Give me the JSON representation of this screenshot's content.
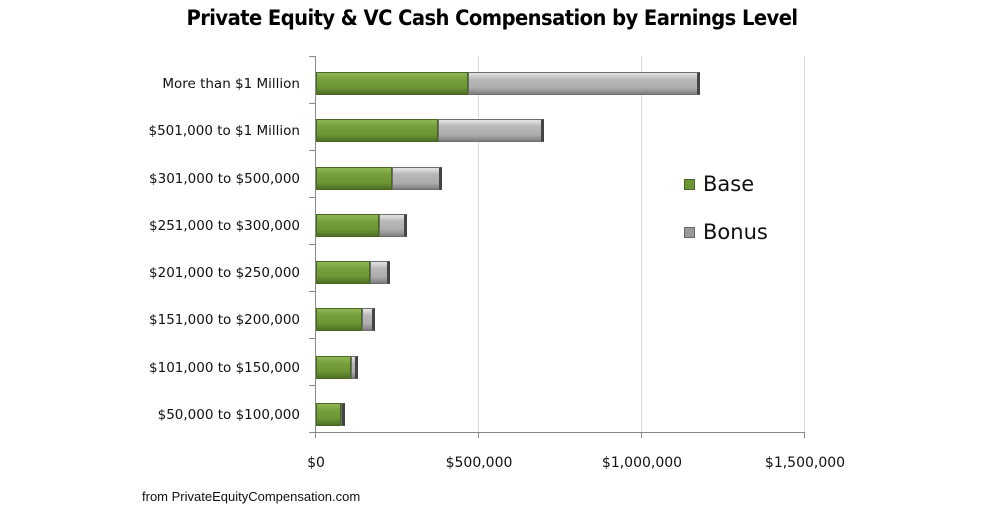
{
  "chart_data": {
    "type": "bar",
    "orientation": "horizontal",
    "stacked": true,
    "title": "Private Equity & VC Cash Compensation by Earnings Level",
    "xlabel": "",
    "ylabel": "",
    "xlim": [
      0,
      1500000
    ],
    "x_ticks": [
      0,
      500000,
      1000000,
      1500000
    ],
    "x_tick_labels": [
      "$0",
      "$500,000",
      "$1,000,000",
      "$1,500,000"
    ],
    "grid": "vertical major gridlines",
    "legend_position": "right",
    "categories": [
      "More than $1 Million",
      "$501,000 to $1 Million",
      "$301,000 to $500,000",
      "$251,000 to $300,000",
      "$201,000 to $250,000",
      "$151,000 to $200,000",
      "$101,000 to $150,000",
      "$50,000 to $100,000"
    ],
    "series": [
      {
        "name": "Base",
        "color": "#6b9535",
        "values": [
          466000,
          374000,
          233000,
          193000,
          166000,
          141000,
          107000,
          77000
        ]
      },
      {
        "name": "Bonus",
        "color": "#a6a6a6",
        "values": [
          712000,
          326000,
          154000,
          86000,
          61000,
          40000,
          22000,
          9000
        ]
      }
    ]
  },
  "title": "Private Equity & VC Cash Compensation by Earnings Level",
  "categories": [
    "More than $1 Million",
    "$501,000 to $1 Million",
    "$301,000 to $500,000",
    "$251,000 to $300,000",
    "$201,000 to $250,000",
    "$151,000 to $200,000",
    "$101,000 to $150,000",
    "$50,000 to $100,000"
  ],
  "x_tick_labels": [
    "$0",
    "$500,000",
    "$1,000,000",
    "$1,500,000"
  ],
  "legend": {
    "base": "Base",
    "bonus": "Bonus"
  },
  "source": "from PrivateEquityCompensation.com"
}
